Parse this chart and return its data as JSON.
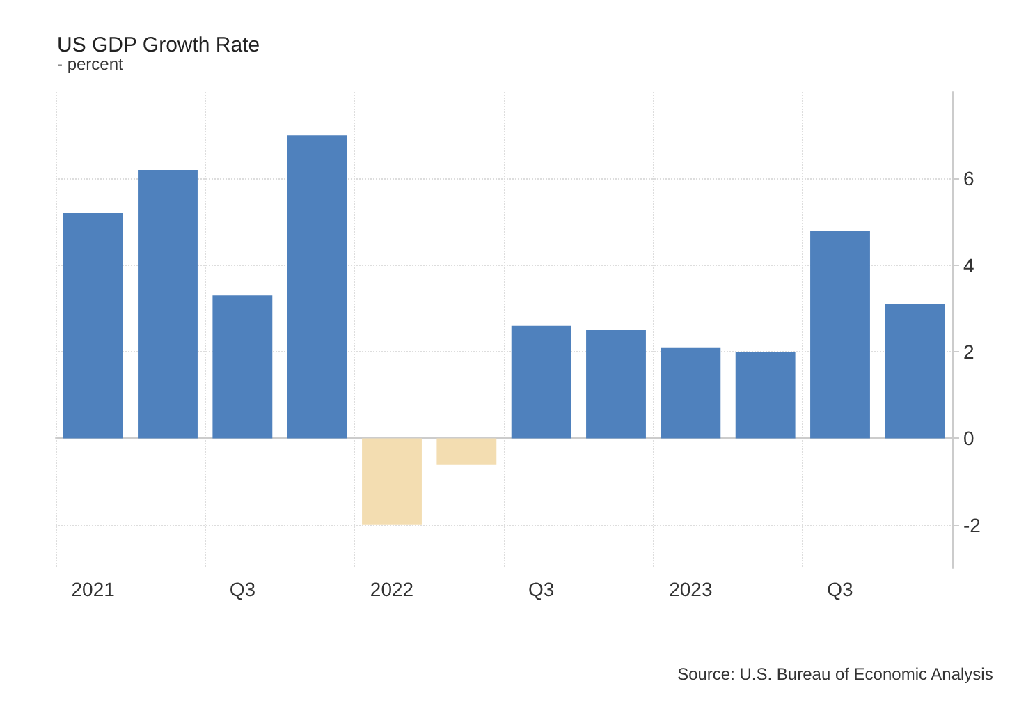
{
  "chart_data": {
    "type": "bar",
    "title": "US GDP Growth Rate",
    "subtitle": "- percent",
    "categories": [
      "2021",
      null,
      "Q3",
      null,
      "2022",
      null,
      "Q3",
      null,
      "2023",
      null,
      "Q3",
      null
    ],
    "values": [
      5.2,
      6.2,
      3.3,
      7.0,
      -2.0,
      -0.6,
      2.6,
      2.5,
      2.1,
      2.0,
      4.8,
      3.1
    ],
    "colors": [
      "#4f81bd",
      "#4f81bd",
      "#4f81bd",
      "#4f81bd",
      "#f3ddb1",
      "#f3ddb1",
      "#4f81bd",
      "#4f81bd",
      "#4f81bd",
      "#4f81bd",
      "#4f81bd",
      "#4f81bd"
    ],
    "ylim": [
      -3,
      8
    ],
    "yticks": [
      -2,
      0,
      2,
      4,
      6
    ],
    "grid": true,
    "annotations": [
      "Source: U.S. Bureau of Economic Analysis"
    ]
  }
}
